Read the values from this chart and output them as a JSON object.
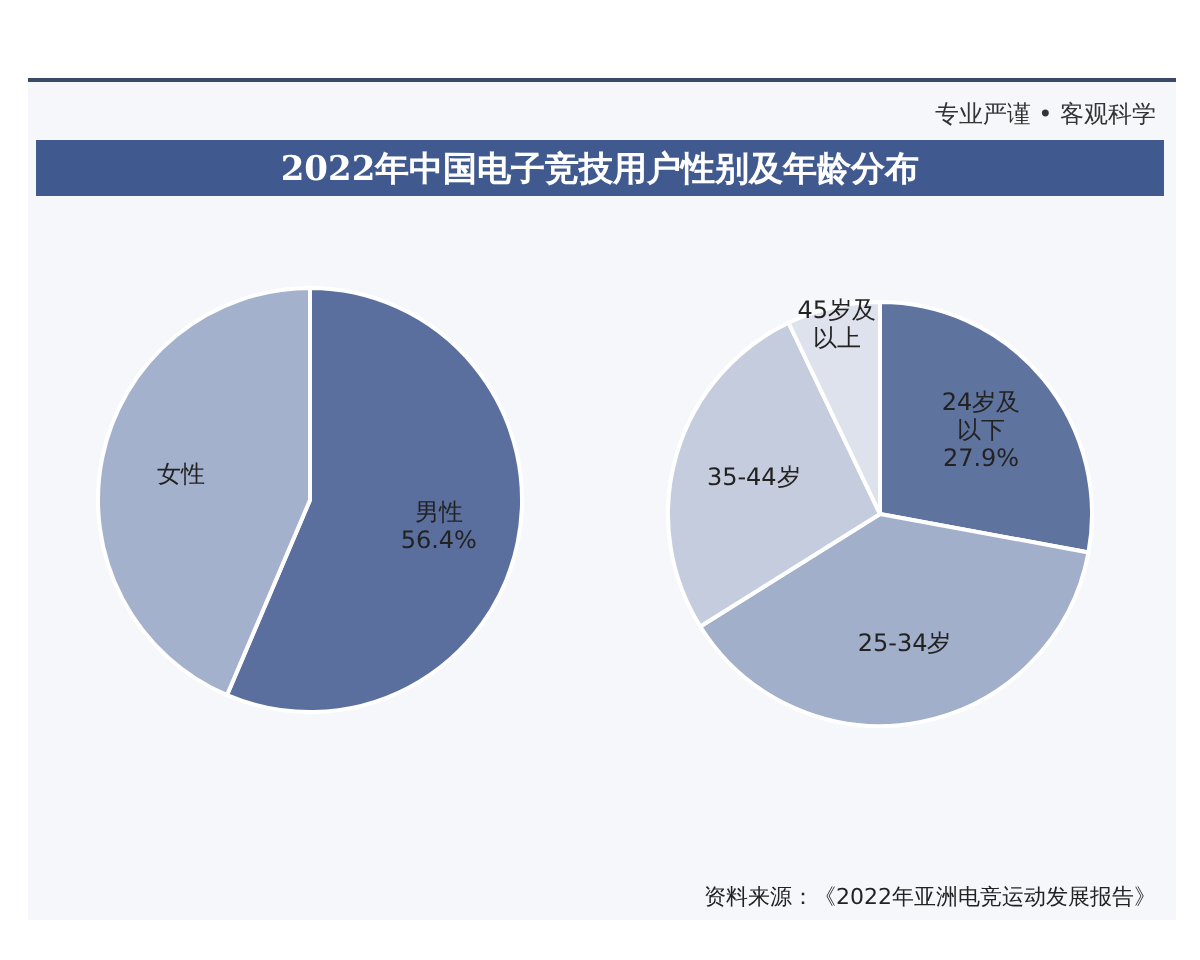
{
  "chart_data": [
    {
      "type": "pie",
      "title": "2022年中国电子竞技用户性别及年龄分布",
      "annotations": [
        "专业严谨 • 客观科学",
        "资料来源：《2022年亚洲电竞运动发展报告》"
      ],
      "categories": [
        "男性",
        "女性"
      ],
      "values": [
        56.4,
        43.6
      ],
      "colors": [
        "#5b6f9e",
        "#a4b1cc"
      ],
      "value_labels": [
        "56.4%",
        null
      ]
    },
    {
      "type": "pie",
      "categories": [
        "24岁及以下",
        "25-34岁",
        "35-44岁",
        "45岁及以上"
      ],
      "values": [
        27.9,
        38.2,
        26.8,
        7.1
      ],
      "colors": [
        "#5f739f",
        "#a2afcb",
        "#c4ccdd",
        "#dde2ec"
      ],
      "value_labels": [
        "27.9%",
        null,
        null,
        null
      ]
    }
  ]
}
